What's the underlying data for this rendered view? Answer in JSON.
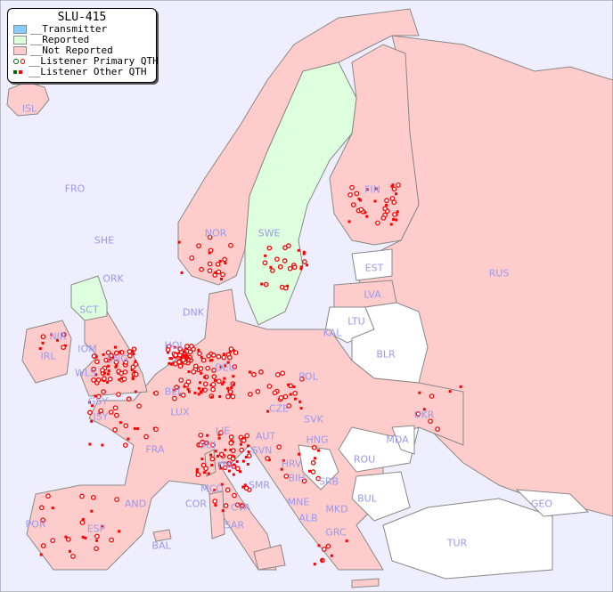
{
  "legend": {
    "title": "SLU-415",
    "items": [
      {
        "label": "__Transmitter",
        "color": "#88ccff"
      },
      {
        "label": "__Reported",
        "color": "#ddffdd"
      },
      {
        "label": "__Not Reported",
        "color": "#ffcccc"
      },
      {
        "label": "__Listener Primary QTH",
        "colors": [
          "#006600",
          "#ff0000"
        ]
      },
      {
        "label": "__Listener Other QTH",
        "colors": [
          "#006600",
          "#ff0000"
        ]
      }
    ]
  },
  "colors": {
    "sea": "#eeeeff",
    "reported": "#ddffdd",
    "not_reported": "#ffcccc",
    "not_participating": "#ffffff",
    "border": "#888888",
    "label": "#9999ee",
    "marker": "#ff0000"
  },
  "countries": [
    "ISL",
    "FRO",
    "SHE",
    "ORK",
    "NOR",
    "SWE",
    "FIN",
    "EST",
    "RUS",
    "LVA",
    "LTU",
    "KAL",
    "BLR",
    "DNK",
    "SCT",
    "NIR",
    "IRL",
    "IOM",
    "ENG",
    "WLS",
    "HOL",
    "BEL",
    "DEU",
    "POL",
    "GSY",
    "JSY",
    "LUX",
    "CZE",
    "SVK",
    "UKR",
    "MDA",
    "FRA",
    "SUI",
    "LIE",
    "AUT",
    "HNG",
    "SVN",
    "HRV",
    "ROU",
    "ITA",
    "SMR",
    "BIH",
    "SRB",
    "MCO",
    "COR",
    "CVA",
    "MNE",
    "BUL",
    "GEO",
    "AND",
    "POR",
    "ESP",
    "SAR",
    "ALB",
    "MKD",
    "GRC",
    "TUR",
    "BAL"
  ]
}
